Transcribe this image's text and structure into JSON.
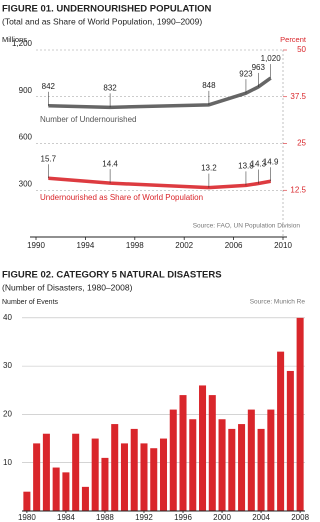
{
  "chart_data": [
    {
      "type": "line",
      "title": "FIGURE 01. UNDERNOURISHED POPULATION",
      "subtitle": "(Total and as Share of World Population, 1990–2009)",
      "ylabel": "Millions",
      "y2label": "Percent",
      "source": "Source: FAO, UN Population Division",
      "x": [
        1991,
        1996,
        2004,
        2007,
        2008,
        2009
      ],
      "xlim": [
        1990,
        2010
      ],
      "xticks": [
        1990,
        1994,
        1998,
        2002,
        2006,
        2010
      ],
      "ylim": [
        0,
        1200
      ],
      "yticks": [
        {
          "value": 1200,
          "label": "1,200"
        },
        900,
        600,
        300
      ],
      "y2lim": [
        0,
        50
      ],
      "y2ticks": [
        50,
        37.5,
        25,
        12.5
      ],
      "grid": true,
      "series": [
        {
          "name": "Number of Undernourished",
          "color": "#555555",
          "values": [
            842,
            832,
            848,
            923,
            963,
            1020
          ],
          "value_labels": [
            "842",
            "832",
            "848",
            "923",
            "963",
            "1,020"
          ]
        },
        {
          "name": "Undernourished as Share of World Population",
          "color": "#d9262b",
          "axis": "y2",
          "values": [
            15.7,
            14.4,
            13.2,
            13.8,
            14.3,
            14.9
          ]
        }
      ]
    },
    {
      "type": "bar",
      "title": "FIGURE 02. CATEGORY 5 NATURAL DISASTERS",
      "subtitle": "(Number of Disasters, 1980–2008)",
      "ylabel": "Number of Events",
      "source": "Source: Munich Re",
      "x": [
        1980,
        1981,
        1982,
        1983,
        1984,
        1985,
        1986,
        1987,
        1988,
        1989,
        1990,
        1991,
        1992,
        1993,
        1994,
        1995,
        1996,
        1997,
        1998,
        1999,
        2000,
        2001,
        2002,
        2003,
        2004,
        2005,
        2006,
        2007,
        2008
      ],
      "values": [
        4,
        14,
        16,
        9,
        8,
        16,
        5,
        15,
        11,
        18,
        14,
        17,
        14,
        13,
        15,
        21,
        24,
        19,
        26,
        24,
        19,
        17,
        18,
        21,
        17,
        21,
        33,
        29,
        40
      ],
      "color": "#d9262b",
      "xlim": [
        1979.5,
        2008.5
      ],
      "xticks": [
        1980,
        1984,
        1988,
        1992,
        1996,
        2000,
        2004,
        2008
      ],
      "ylim": [
        0,
        41
      ],
      "yticks": [
        10,
        20,
        30,
        40
      ],
      "grid": true
    }
  ]
}
